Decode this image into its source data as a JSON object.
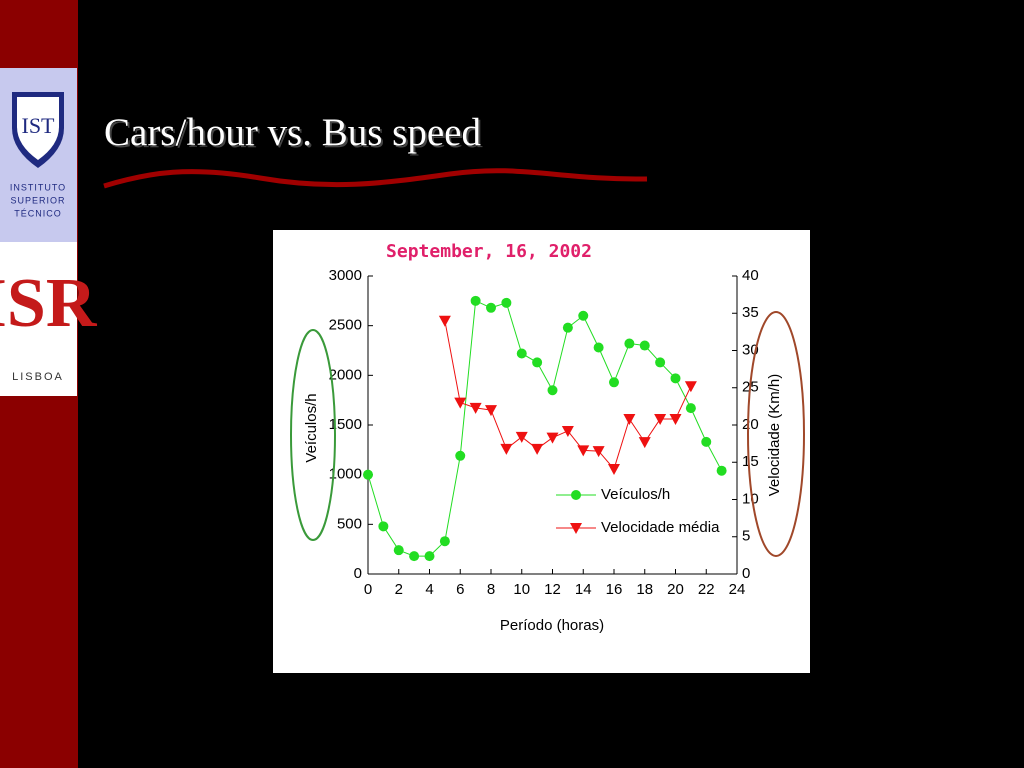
{
  "slide": {
    "title": "Cars/hour vs. Bus speed",
    "logo_top": [
      "INSTITUTO",
      "SUPERIOR",
      "TÉCNICO"
    ],
    "logo_bottom": "LISBOA"
  },
  "chart_data": {
    "type": "line",
    "title": "September, 16, 2002",
    "x_label": "Período (horas)",
    "y_label": "Veículos/h",
    "y2_label": "Velocidade (Km/h)",
    "x": [
      0,
      1,
      2,
      3,
      4,
      5,
      6,
      7,
      8,
      9,
      10,
      11,
      12,
      13,
      14,
      15,
      16,
      17,
      18,
      19,
      20,
      21,
      22,
      23
    ],
    "xlim": [
      0,
      24
    ],
    "xticks": [
      0,
      2,
      4,
      6,
      8,
      10,
      12,
      14,
      16,
      18,
      20,
      22,
      24
    ],
    "ylim": [
      0,
      3000
    ],
    "yticks": [
      0,
      500,
      1000,
      1500,
      2000,
      2500,
      3000
    ],
    "y2lim": [
      0,
      40
    ],
    "y2ticks": [
      0,
      5,
      10,
      15,
      20,
      25,
      30,
      35,
      40
    ],
    "legend": "lower right",
    "series": [
      {
        "name": "Veículos/h",
        "color": "#22dd22",
        "marker": "circle",
        "values": [
          1000,
          480,
          240,
          180,
          180,
          330,
          1190,
          2750,
          2680,
          2730,
          2220,
          2130,
          1850,
          2480,
          2600,
          2280,
          1930,
          2320,
          2300,
          2130,
          1970,
          1670,
          1330,
          1040
        ]
      },
      {
        "name": "Velocidade média",
        "color": "#ee1111",
        "marker": "triangle-down",
        "axis": "y2",
        "values": [
          null,
          null,
          null,
          null,
          null,
          34,
          23,
          22.3,
          22,
          16.8,
          18.4,
          16.8,
          18.3,
          19.2,
          16.6,
          16.5,
          14.1,
          20.8,
          17.7,
          20.8,
          20.8,
          25.2,
          null,
          null
        ]
      }
    ]
  }
}
